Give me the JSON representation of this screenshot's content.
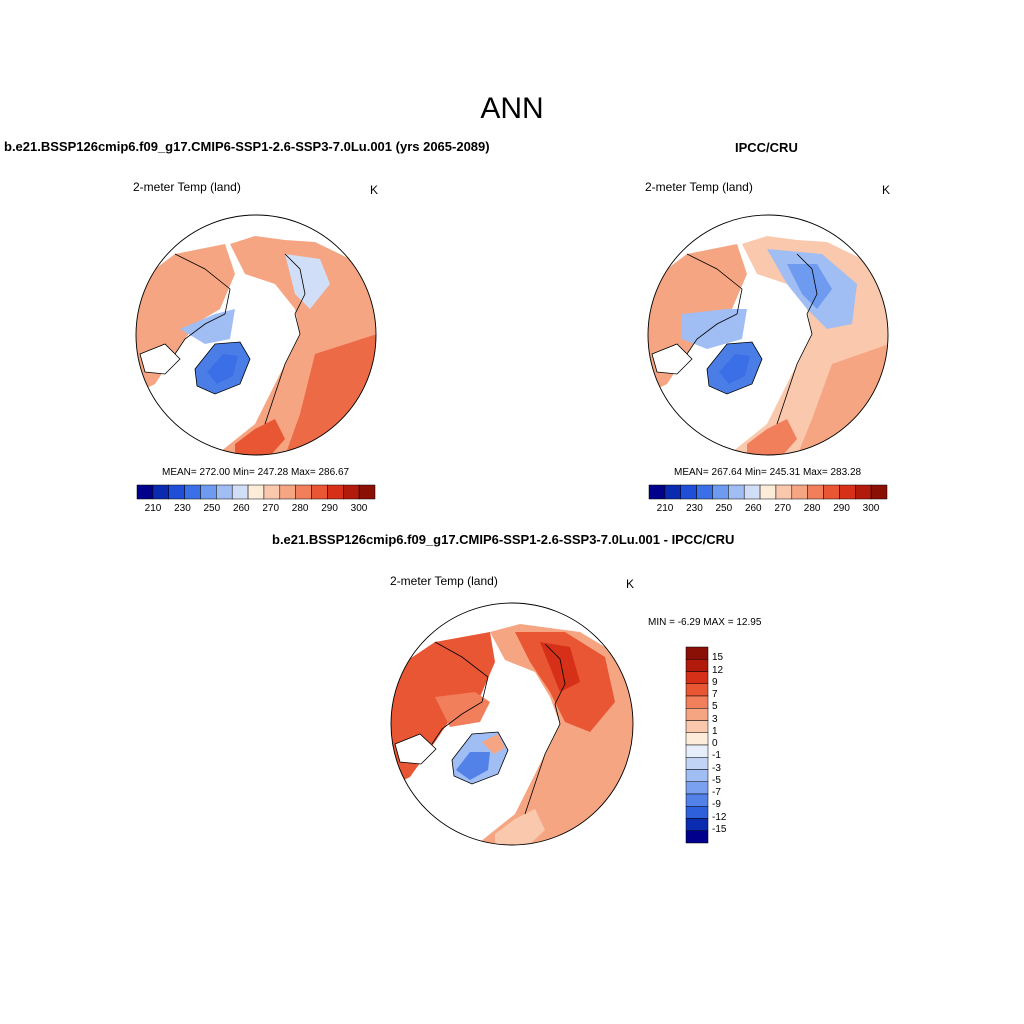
{
  "title": "ANN",
  "panels": {
    "model": {
      "title": "b.e21.BSSP126cmip6.f09_g17.CMIP6-SSP1-2.6-SSP3-7.0Lu.001 (yrs 2065-2089)",
      "variable": "2-meter Temp (land)",
      "units": "K",
      "stats": "MEAN= 272.00  Min= 247.28  Max= 286.67"
    },
    "obs": {
      "title": "IPCC/CRU",
      "variable": "2-meter Temp (land)",
      "units": "K",
      "stats": "MEAN= 267.64  Min= 245.31  Max= 283.28"
    },
    "diff": {
      "title": "b.e21.BSSP126cmip6.f09_g17.CMIP6-SSP1-2.6-SSP3-7.0Lu.001 - IPCC/CRU",
      "variable": "2-meter Temp (land)",
      "units": "K",
      "stats": "MIN =  -6.29 MAX =  12.95"
    }
  },
  "colorbar_abs": {
    "colors": [
      "#00008c",
      "#0a2bb0",
      "#1f4fd6",
      "#3b6fe8",
      "#6e9af0",
      "#a0bdf4",
      "#d0def8",
      "#fdecd9",
      "#f9c8ad",
      "#f6a582",
      "#f27f5c",
      "#e85634",
      "#d63018",
      "#b21a0c",
      "#8a0f05"
    ],
    "tick_labels": [
      "210",
      "230",
      "250",
      "260",
      "270",
      "280",
      "290",
      "300"
    ]
  },
  "colorbar_diff": {
    "colors": [
      "#8a0f05",
      "#b21a0c",
      "#d63018",
      "#e85634",
      "#f27f5c",
      "#f6a582",
      "#f9c8ad",
      "#fdecd9",
      "#e6eefa",
      "#c2d4f6",
      "#a0bdf4",
      "#7aa1ef",
      "#5281e8",
      "#2f60dc",
      "#0a2bb0",
      "#00008c"
    ],
    "tick_labels": [
      "15",
      "12",
      "9",
      "7",
      "5",
      "3",
      "1",
      "0",
      "-1",
      "-3",
      "-5",
      "-7",
      "-9",
      "-12",
      "-15"
    ]
  },
  "map_colors": {
    "model_warm": "#f6a582",
    "model_warm_dark": "#ec6a45",
    "model_cool": "#a0bdf4",
    "model_cold": "#4a7ee6",
    "diff_warm": "#e85634",
    "diff_warm_light": "#f6a582",
    "diff_cool": "#5281e8"
  }
}
